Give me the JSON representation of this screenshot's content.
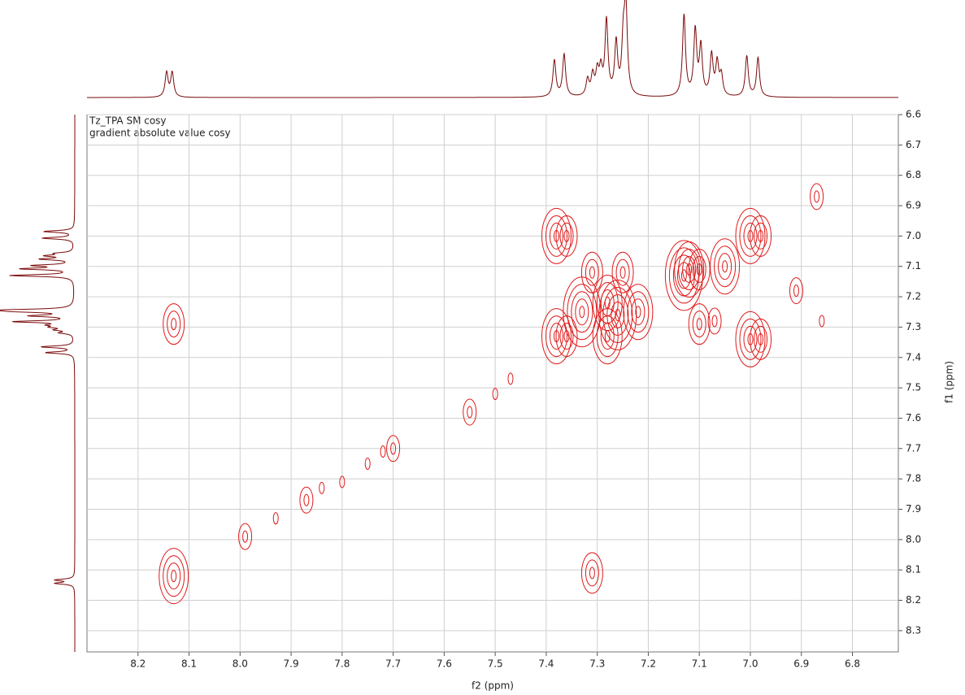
{
  "chart_data": {
    "type": "contour",
    "title": "Tz_TPA SM cosy",
    "subtitle": "gradient absolute value cosy",
    "x_label": "f2 (ppm)",
    "y_label": "f1 (ppm)",
    "xlim": [
      8.3,
      6.71
    ],
    "ylim": [
      6.6,
      8.37
    ],
    "xticks": [
      8.2,
      8.1,
      {
        "value": 8,
        "label": "8.0"
      },
      7.9,
      7.8,
      7.7,
      7.6,
      7.5,
      7.4,
      7.3,
      7.2,
      7.1,
      {
        "value": 7,
        "label": "7.0"
      },
      6.9,
      6.8
    ],
    "yticks": [
      6.6,
      6.7,
      6.8,
      6.9,
      {
        "value": 7,
        "label": "7.0"
      },
      7.1,
      7.2,
      7.3,
      7.4,
      7.5,
      7.6,
      7.7,
      7.8,
      7.9,
      {
        "value": 8,
        "label": "8.0"
      },
      8.1,
      8.2,
      8.3
    ],
    "grid": true,
    "contour_color": "#e01b1b",
    "projection_color": "#7a0a0a",
    "projection": {
      "x": [
        8.144,
        8.133,
        7.384,
        7.365,
        7.319,
        7.309,
        7.3,
        7.293,
        7.282,
        7.263,
        7.249,
        7.244,
        7.13,
        7.108,
        7.097,
        7.076,
        7.065,
        7.057,
        7.007,
        6.985
      ],
      "values": [
        30,
        30,
        45,
        52,
        20,
        25,
        28,
        30,
        92,
        64,
        62,
        106,
        100,
        80,
        60,
        50,
        40,
        25,
        50,
        48
      ]
    },
    "peaks": {
      "x": [
        8.13,
        7.99,
        7.93,
        7.87,
        7.84,
        7.8,
        7.75,
        7.72,
        7.7,
        7.55,
        7.5,
        7.47,
        8.13,
        7.31,
        7.38,
        7.36,
        7.38,
        7.36,
        7.31,
        7.28,
        7.28,
        7.25,
        7.26,
        7.12,
        7.1,
        7.1,
        7.07,
        7.0,
        6.98,
        7.0,
        6.98,
        7.13,
        6.87,
        6.86,
        6.91,
        7.33,
        7.22,
        7.05
      ],
      "y": [
        8.12,
        7.99,
        7.93,
        7.87,
        7.83,
        7.81,
        7.75,
        7.71,
        7.7,
        7.58,
        7.52,
        7.47,
        7.29,
        8.11,
        7.0,
        7.0,
        7.33,
        7.33,
        7.12,
        7.22,
        7.33,
        7.12,
        7.26,
        7.11,
        7.11,
        7.29,
        7.28,
        7.0,
        7.0,
        7.34,
        7.34,
        7.13,
        6.87,
        7.28,
        7.18,
        7.25,
        7.25,
        7.1
      ],
      "levels": [
        4,
        2,
        1,
        2,
        1,
        1,
        1,
        1,
        2,
        2,
        1,
        1,
        3,
        3,
        4,
        3,
        4,
        3,
        3,
        4,
        4,
        3,
        5,
        4,
        3,
        3,
        2,
        4,
        3,
        4,
        3,
        5,
        2,
        1,
        2,
        5,
        4,
        4
      ]
    }
  }
}
